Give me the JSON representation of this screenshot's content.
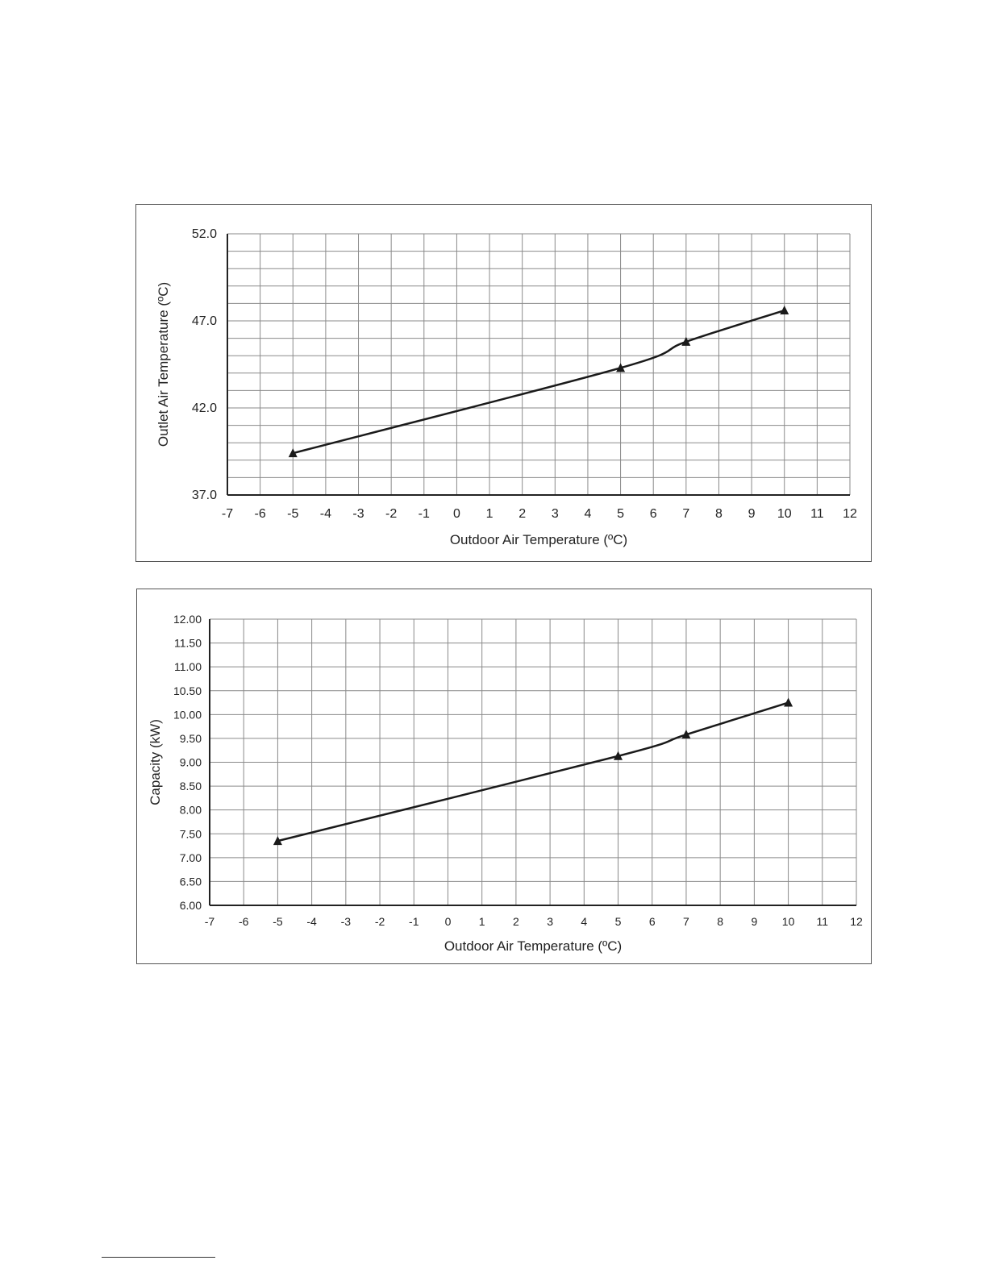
{
  "chart_data": [
    {
      "type": "line",
      "xlabel": "Outdoor Air Temperature (ºC)",
      "ylabel": "Outlet Air Temperature (ºC)",
      "xlim": [
        -7,
        12
      ],
      "ylim": [
        37.0,
        52.0
      ],
      "x_ticks": [
        "-7",
        "-6",
        "-5",
        "-4",
        "-3",
        "-2",
        "-1",
        "0",
        "1",
        "2",
        "3",
        "4",
        "5",
        "6",
        "7",
        "8",
        "9",
        "10",
        "11",
        "12"
      ],
      "y_ticks": [
        "37.0",
        "42.0",
        "47.0",
        "52.0"
      ],
      "y_tick_values": [
        37,
        42,
        47,
        52
      ],
      "y_minor_step": 1,
      "grid": true,
      "marker": "triangle",
      "series": [
        {
          "x": [
            -5,
            5,
            7,
            10
          ],
          "y": [
            39.4,
            44.3,
            45.8,
            47.6
          ]
        }
      ]
    },
    {
      "type": "line",
      "xlabel": "Outdoor Air Temperature (ºC)",
      "ylabel": "Capacity (kW)",
      "xlim": [
        -7,
        12
      ],
      "ylim": [
        6.0,
        12.0
      ],
      "x_ticks": [
        "-7",
        "-6",
        "-5",
        "-4",
        "-3",
        "-2",
        "-1",
        "0",
        "1",
        "2",
        "3",
        "4",
        "5",
        "6",
        "7",
        "8",
        "9",
        "10",
        "11",
        "12"
      ],
      "y_ticks": [
        "6.00",
        "6.50",
        "7.00",
        "7.50",
        "8.00",
        "8.50",
        "9.00",
        "9.50",
        "10.00",
        "10.50",
        "11.00",
        "11.50",
        "12.00"
      ],
      "y_tick_values": [
        6,
        6.5,
        7,
        7.5,
        8,
        8.5,
        9,
        9.5,
        10,
        10.5,
        11,
        11.5,
        12
      ],
      "y_minor_step": 0.5,
      "grid": true,
      "marker": "triangle",
      "series": [
        {
          "x": [
            -5,
            5,
            7,
            10
          ],
          "y": [
            7.35,
            9.13,
            9.58,
            10.25
          ]
        }
      ]
    }
  ]
}
